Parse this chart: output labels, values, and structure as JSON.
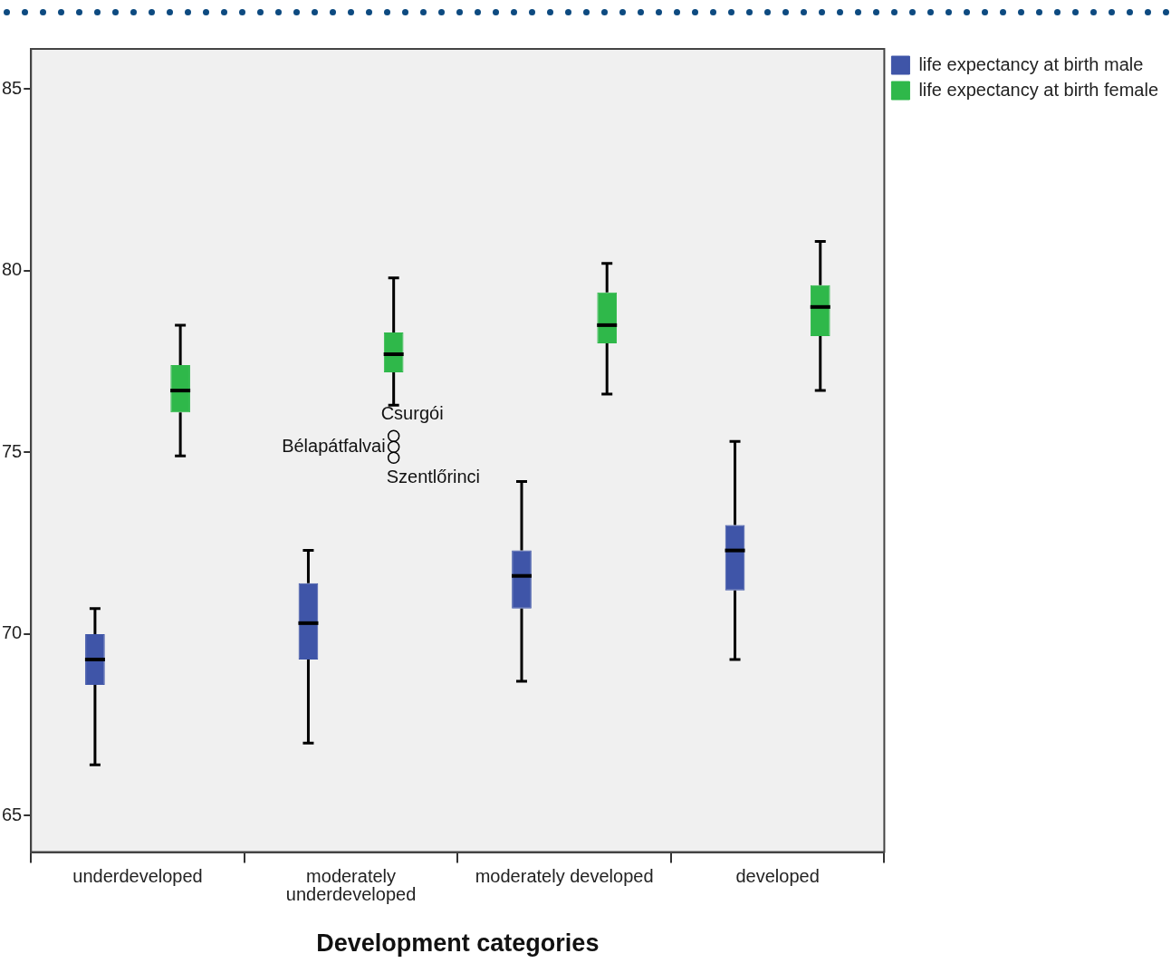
{
  "chart_data": {
    "type": "box",
    "xlabel": "Development categories",
    "categories": [
      "underdeveloped",
      "moderately underdeveloped",
      "moderately developed",
      "developed"
    ],
    "ylim": [
      64,
      86.1
    ],
    "yticks": [
      65,
      70,
      75,
      80,
      85
    ],
    "legend": "top right",
    "series": [
      {
        "name": "life expectancy at birth male",
        "color": "#3f55a8",
        "boxes": [
          {
            "low": 66.4,
            "q1": 68.6,
            "median": 69.3,
            "q3": 70.0,
            "high": 70.7
          },
          {
            "low": 67.0,
            "q1": 69.3,
            "median": 70.3,
            "q3": 71.4,
            "high": 72.3
          },
          {
            "low": 68.7,
            "q1": 70.7,
            "median": 71.6,
            "q3": 72.3,
            "high": 74.2
          },
          {
            "low": 69.3,
            "q1": 71.2,
            "median": 72.3,
            "q3": 73.0,
            "high": 75.3
          }
        ]
      },
      {
        "name": "life expectancy at birth female",
        "color": "#2fb84a",
        "boxes": [
          {
            "low": 74.9,
            "q1": 76.1,
            "median": 76.7,
            "q3": 77.4,
            "high": 78.5
          },
          {
            "low": 76.3,
            "q1": 77.2,
            "median": 77.7,
            "q3": 78.3,
            "high": 79.8,
            "outliers": [
              75.45,
              75.15,
              74.85
            ]
          },
          {
            "low": 76.6,
            "q1": 78.0,
            "median": 78.5,
            "q3": 79.4,
            "high": 80.2
          },
          {
            "low": 76.7,
            "q1": 78.2,
            "median": 79.0,
            "q3": 79.6,
            "high": 80.8
          }
        ]
      }
    ],
    "annotations": [
      "Csurgói",
      "Bélapátfalvai",
      "Szentlőrinci"
    ]
  }
}
